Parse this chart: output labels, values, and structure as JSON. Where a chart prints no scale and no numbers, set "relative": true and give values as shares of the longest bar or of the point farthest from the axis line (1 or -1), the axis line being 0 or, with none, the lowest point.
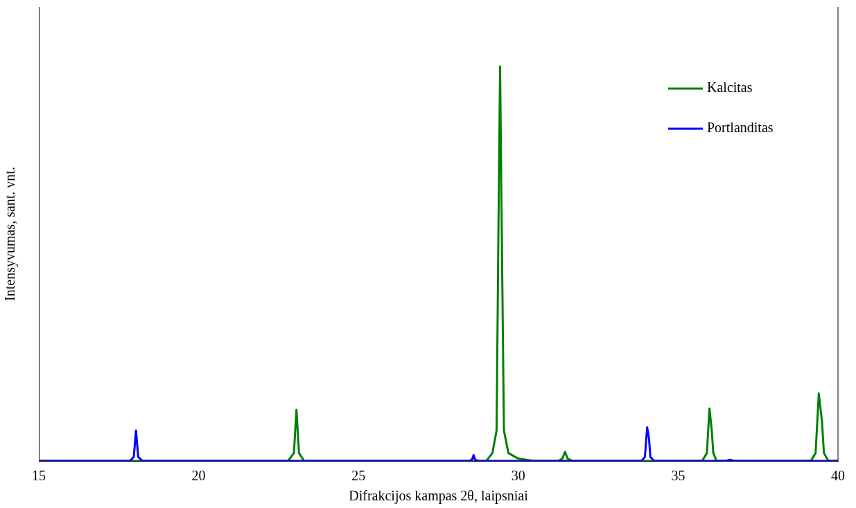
{
  "chart_data": {
    "type": "line",
    "xlabel": "Difrakcijos kampas 2θ, laipsniai",
    "ylabel": "Intensyvumas, sant. vnt.",
    "relative": true,
    "xlim": [
      15,
      40
    ],
    "xticks": [
      15,
      20,
      25,
      30,
      35,
      40
    ],
    "legend": "top right",
    "grid": false,
    "marker": "none",
    "line_style": "solid",
    "series": [
      {
        "name": "Kalcitas",
        "color": "#008000",
        "x": [
          15,
          22.8,
          22.98,
          23.06,
          23.14,
          23.3,
          29.0,
          29.19,
          29.32,
          29.38,
          29.43,
          29.48,
          29.55,
          29.69,
          30.0,
          30.5,
          31.25,
          31.38,
          31.46,
          31.54,
          31.7,
          35.75,
          35.9,
          35.98,
          36.05,
          36.1,
          36.2,
          39.15,
          39.3,
          39.4,
          39.5,
          39.56,
          39.7,
          40
        ],
        "values": [
          0,
          0,
          0.02,
          0.13,
          0.02,
          0,
          0,
          0.02,
          0.077,
          0.6,
          1,
          0.6,
          0.077,
          0.02,
          0.006,
          0,
          0,
          0.006,
          0.023,
          0.006,
          0,
          0,
          0.02,
          0.133,
          0.079,
          0.02,
          0,
          0,
          0.02,
          0.171,
          0.1,
          0.02,
          0,
          0
        ]
      },
      {
        "name": "Portlanditas",
        "color": "#0000ff",
        "x": [
          15,
          17.85,
          17.97,
          18.04,
          18.11,
          18.25,
          28.45,
          28.55,
          28.6,
          28.65,
          28.75,
          33.85,
          33.96,
          34.03,
          34.09,
          34.13,
          34.25,
          36.5,
          36.62,
          36.75,
          40
        ],
        "values": [
          0,
          0,
          0.01,
          0.077,
          0.01,
          0,
          0,
          0.003,
          0.015,
          0.003,
          0,
          0,
          0.01,
          0.085,
          0.056,
          0.01,
          0,
          0,
          0.003,
          0,
          0
        ]
      }
    ]
  }
}
